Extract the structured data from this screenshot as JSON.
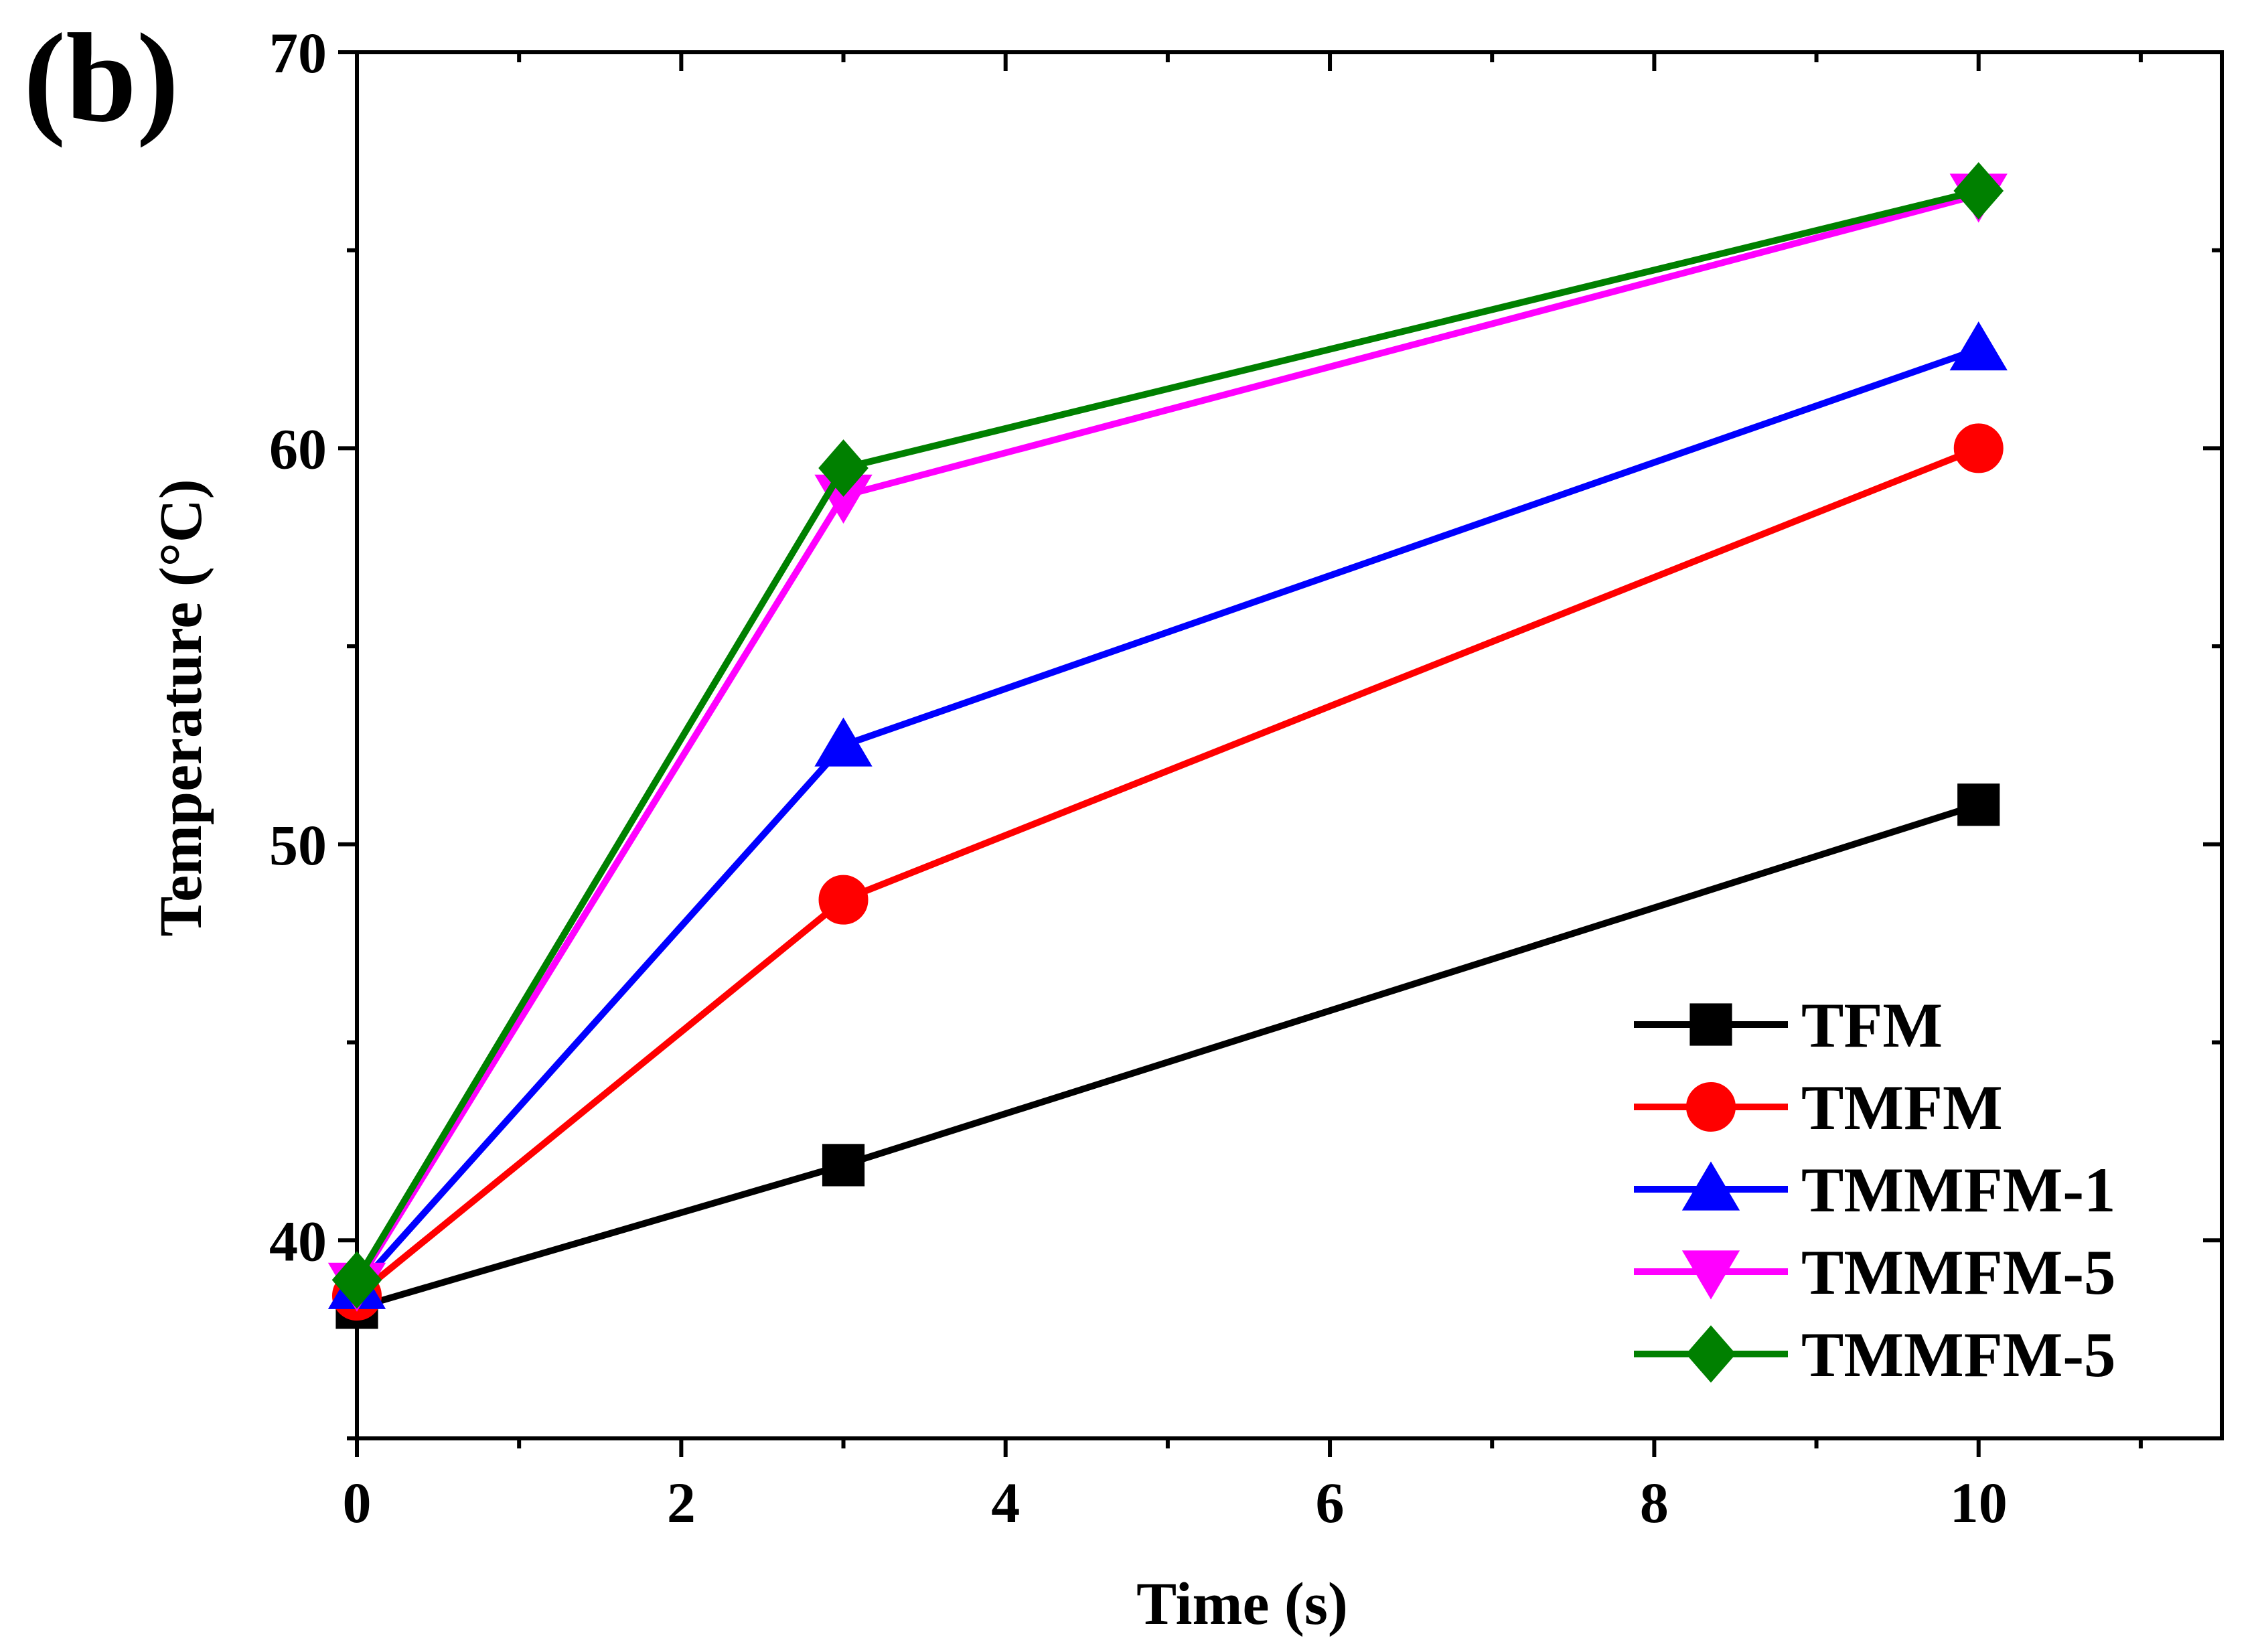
{
  "panel_label": "(b)",
  "chart_data": {
    "type": "line",
    "title": "",
    "xlabel": "Time (s)",
    "ylabel": "Temperature (°C)",
    "xlim": [
      0,
      11.5
    ],
    "ylim": [
      35,
      70
    ],
    "x_ticks": [
      0,
      2,
      4,
      6,
      8,
      10
    ],
    "x_tick_labels": [
      "0",
      "2",
      "4",
      "6",
      "8",
      "10"
    ],
    "y_ticks": [
      40,
      50,
      60,
      70
    ],
    "y_tick_labels": [
      "40",
      "50",
      "60",
      "70"
    ],
    "legend_position": "bottom-right",
    "grid": false,
    "x": [
      0,
      3,
      10
    ],
    "series": [
      {
        "name": "TFM",
        "color": "#000000",
        "marker": "square",
        "values": [
          38.3,
          41.9,
          51.0
        ]
      },
      {
        "name": "TMFM",
        "color": "#ff0000",
        "marker": "circle",
        "values": [
          38.6,
          48.6,
          60.0
        ]
      },
      {
        "name": "TMMFM-1",
        "color": "#0000ff",
        "marker": "triangle-up",
        "values": [
          38.8,
          52.5,
          62.5
        ]
      },
      {
        "name": "TMMFM-5",
        "color": "#ff00ff",
        "marker": "triangle-down",
        "values": [
          38.9,
          58.8,
          66.4
        ]
      },
      {
        "name": "TMMFM-5",
        "color": "#008000",
        "marker": "diamond",
        "values": [
          39.0,
          59.5,
          66.5
        ]
      }
    ]
  }
}
